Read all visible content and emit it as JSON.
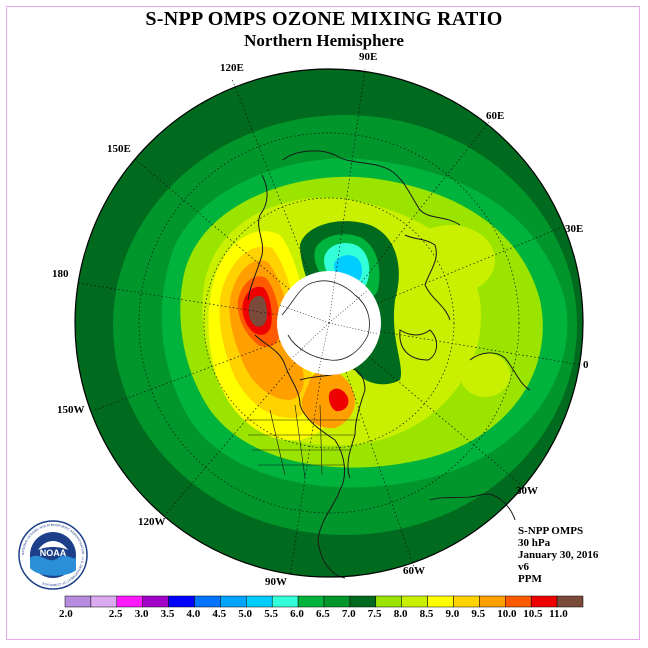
{
  "title": "S-NPP OMPS OZONE MIXING RATIO",
  "subtitle": "Northern Hemisphere",
  "longitude_labels": {
    "lon_90e": "90E",
    "lon_120e": "120E",
    "lon_60e": "60E",
    "lon_150e": "150E",
    "lon_30e": "30E",
    "lon_180": "180",
    "lon_0": "0",
    "lon_150w": "150W",
    "lon_30w": "30W",
    "lon_120w": "120W",
    "lon_60w": "60W",
    "lon_90w": "90W"
  },
  "info": {
    "instrument": "S-NPP OMPS",
    "level": "30 hPa",
    "date": "January 30, 2016",
    "version": "v6",
    "units": "PPM"
  },
  "logo": {
    "text": "NOAA",
    "ring_text": "NATIONAL OCEANIC AND ATMOSPHERIC ADMINISTRATION · U.S. DEPARTMENT OF COMMERCE"
  },
  "colorbar": {
    "labels": [
      "2.0",
      "2.5",
      "3.0",
      "3.5",
      "4.0",
      "4.5",
      "5.0",
      "5.5",
      "6.0",
      "6.5",
      "7.0",
      "7.5",
      "8.0",
      "8.5",
      "9.0",
      "9.5",
      "10.0",
      "10.5",
      "11.0"
    ],
    "colors": [
      "#b78be0",
      "#dcaaf0",
      "#ff19ff",
      "#a000c8",
      "#0000ff",
      "#0073ff",
      "#00a5ff",
      "#00cdff",
      "#33ffd9",
      "#00b33c",
      "#00962b",
      "#006a1e",
      "#9be400",
      "#c8f000",
      "#ffff00",
      "#ffd200",
      "#ffa000",
      "#ff5a00",
      "#ee0000",
      "#7a4a3a"
    ]
  },
  "palette": {
    "green_dark": "#006a1e",
    "green_mid": "#00962b",
    "green_light": "#00b33c",
    "lime": "#9be400",
    "yellow_green": "#c8f000",
    "yellow": "#ffff00",
    "orange": "#ffa000",
    "red": "#ee0000",
    "brown": "#7a4a3a",
    "cyan": "#33ffd9",
    "sky": "#00cdff",
    "blue": "#0073ff"
  }
}
